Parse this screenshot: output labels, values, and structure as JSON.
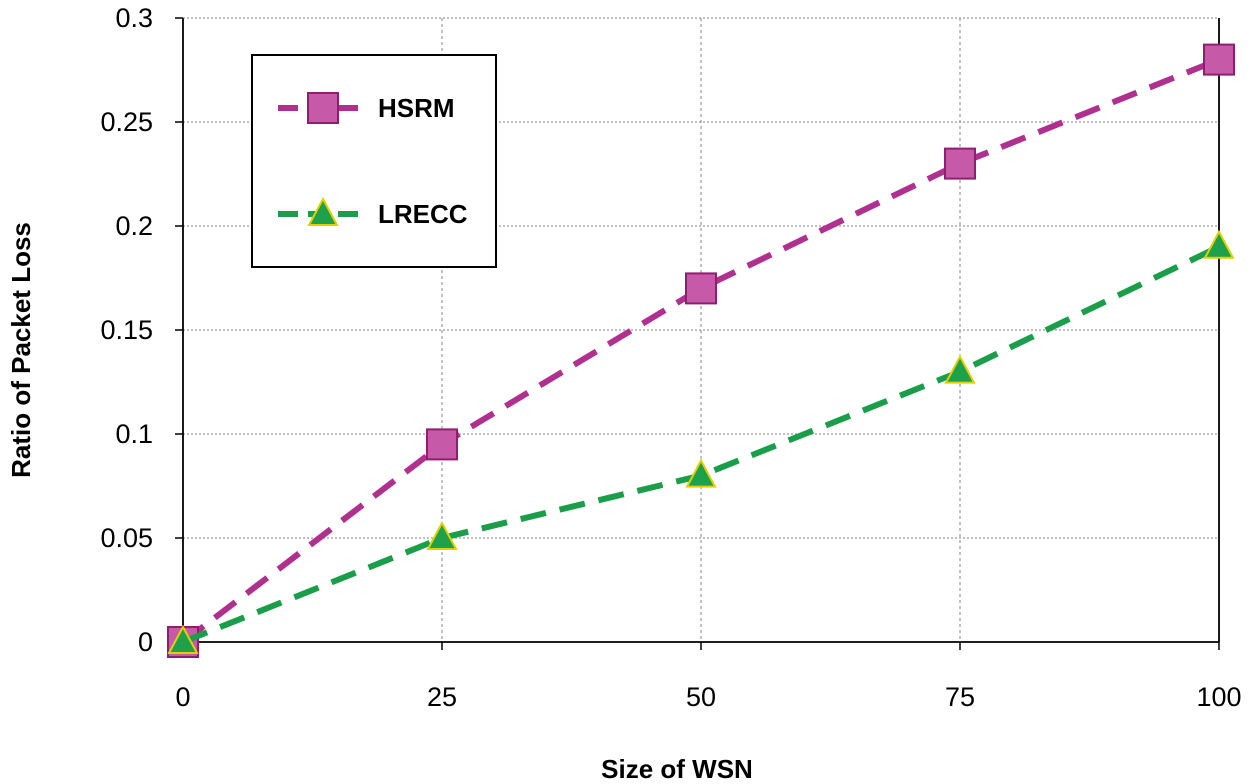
{
  "chart_data": {
    "type": "line",
    "title": "",
    "xlabel": "Size of WSN",
    "ylabel": "Ratio of Packet Loss",
    "x": [
      0,
      25,
      50,
      75,
      100
    ],
    "xlim": [
      0,
      100
    ],
    "ylim": [
      0,
      0.3
    ],
    "x_ticks": [
      "0",
      "25",
      "50",
      "75",
      "100"
    ],
    "y_ticks": [
      "0",
      "0.05",
      "0.1",
      "0.15",
      "0.2",
      "0.25",
      "0.3"
    ],
    "grid": true,
    "legend_position": "top-left",
    "series": [
      {
        "name": "HSRM",
        "values": [
          0,
          0.095,
          0.17,
          0.23,
          0.28
        ],
        "color": "#b0308f",
        "marker": "square",
        "marker_fill": "#c75aa8",
        "marker_stroke": "#8e1f6e",
        "line_style": "dashed"
      },
      {
        "name": "LRECC",
        "values": [
          0,
          0.05,
          0.08,
          0.13,
          0.19
        ],
        "color": "#1a9e4a",
        "marker": "triangle",
        "marker_fill": "#1fa04a",
        "marker_stroke": "#e0d000",
        "line_style": "dashed"
      }
    ]
  }
}
